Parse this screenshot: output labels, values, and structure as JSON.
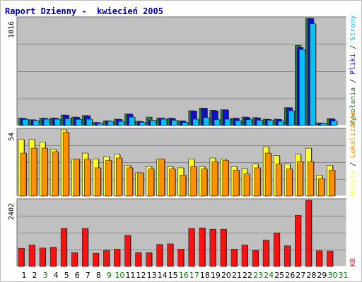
{
  "title": "Raport Dzienny -  kwiecień 2005",
  "colors": {
    "background": "#ffffff",
    "plot_bg": "#c0c0c0",
    "grid": "#8a8a8a",
    "title": "#0000b0",
    "hits": "#2a7a3a",
    "files": "#1010c8",
    "pages": "#00c0ff",
    "visits": "#ffff20",
    "sites": "#ff9000",
    "kbytes": "#ff1010",
    "weekend_label": "#008000",
    "weekday_label": "#000000"
  },
  "chart_data": [
    {
      "type": "bar",
      "panel": "top",
      "y_tick_label": "1016",
      "ylim": [
        0,
        1016
      ],
      "grid": true,
      "right_legend": [
        "Wywołania",
        "Pliki",
        "Strony"
      ],
      "categories": [
        "1",
        "2",
        "3",
        "4",
        "5",
        "6",
        "7",
        "8",
        "9",
        "10",
        "11",
        "12",
        "13",
        "14",
        "15",
        "16",
        "17",
        "18",
        "19",
        "20",
        "21",
        "22",
        "23",
        "24",
        "25",
        "26",
        "27",
        "28",
        "29",
        "30",
        "31"
      ],
      "series": [
        {
          "name": "Wywołania",
          "color": "#2a7a3a",
          "values": [
            70,
            55,
            70,
            72,
            100,
            80,
            95,
            30,
            45,
            60,
            110,
            40,
            80,
            72,
            70,
            44,
            140,
            165,
            145,
            150,
            70,
            80,
            75,
            60,
            60,
            170,
            760,
            1016,
            25,
            65,
            0
          ]
        },
        {
          "name": "Pliki",
          "color": "#1010c8",
          "values": [
            68,
            53,
            68,
            70,
            98,
            78,
            93,
            28,
            43,
            58,
            108,
            38,
            52,
            70,
            68,
            42,
            138,
            164,
            140,
            148,
            68,
            78,
            72,
            58,
            58,
            168,
            740,
            1016,
            23,
            63,
            0
          ]
        },
        {
          "name": "Strony",
          "color": "#00c0ff",
          "values": [
            58,
            48,
            60,
            60,
            65,
            58,
            60,
            20,
            40,
            40,
            80,
            30,
            50,
            60,
            50,
            28,
            60,
            75,
            55,
            60,
            45,
            55,
            50,
            50,
            40,
            140,
            720,
            965,
            18,
            42,
            0
          ]
        }
      ]
    },
    {
      "type": "bar",
      "panel": "middle",
      "y_tick_label": "54",
      "ylim": [
        0,
        54
      ],
      "grid": true,
      "right_legend": [
        "Wizyty",
        "Lokalizacje"
      ],
      "categories": [
        "1",
        "2",
        "3",
        "4",
        "5",
        "6",
        "7",
        "8",
        "9",
        "10",
        "11",
        "12",
        "13",
        "14",
        "15",
        "16",
        "17",
        "18",
        "19",
        "20",
        "21",
        "22",
        "23",
        "24",
        "25",
        "26",
        "27",
        "28",
        "29",
        "30",
        "31"
      ],
      "series": [
        {
          "name": "Wizyty",
          "color": "#ffff20",
          "values": [
            46,
            46,
            44,
            38,
            54,
            30,
            35,
            30,
            32,
            34,
            25,
            19,
            24,
            30,
            24,
            23,
            30,
            24,
            31,
            30,
            24,
            22,
            26,
            40,
            33,
            26,
            34,
            39,
            17,
            25,
            0
          ]
        },
        {
          "name": "Lokalizacje",
          "color": "#ff9000",
          "values": [
            35,
            39,
            39,
            36,
            52,
            30,
            30,
            23,
            29,
            31,
            23,
            19,
            22,
            30,
            22,
            17,
            24,
            22,
            28,
            29,
            21,
            18,
            23,
            35,
            26,
            22,
            28,
            28,
            14,
            21,
            0
          ]
        }
      ]
    },
    {
      "type": "bar",
      "panel": "bottom",
      "y_tick_label": "2402",
      "ylim": [
        0,
        2402
      ],
      "grid": true,
      "right_legend": [
        "KB"
      ],
      "categories": [
        "1",
        "2",
        "3",
        "4",
        "5",
        "6",
        "7",
        "8",
        "9",
        "10",
        "11",
        "12",
        "13",
        "14",
        "15",
        "16",
        "17",
        "18",
        "19",
        "20",
        "21",
        "22",
        "23",
        "24",
        "25",
        "26",
        "27",
        "28",
        "29",
        "30",
        "31"
      ],
      "series": [
        {
          "name": "KB",
          "color": "#ff1010",
          "values": [
            660,
            780,
            670,
            700,
            1380,
            500,
            1380,
            480,
            590,
            630,
            1130,
            500,
            500,
            800,
            820,
            630,
            1380,
            1400,
            1350,
            1350,
            630,
            780,
            580,
            960,
            1220,
            750,
            1860,
            2402,
            570,
            560,
            0
          ]
        }
      ]
    }
  ],
  "x_labels": [
    {
      "t": "1",
      "w": false
    },
    {
      "t": "2",
      "w": false
    },
    {
      "t": "3",
      "w": true
    },
    {
      "t": "4",
      "w": false
    },
    {
      "t": "5",
      "w": false
    },
    {
      "t": "6",
      "w": false
    },
    {
      "t": "7",
      "w": false
    },
    {
      "t": "8",
      "w": false
    },
    {
      "t": "9",
      "w": true
    },
    {
      "t": "10",
      "w": true
    },
    {
      "t": "11",
      "w": false
    },
    {
      "t": "12",
      "w": false
    },
    {
      "t": "13",
      "w": false
    },
    {
      "t": "14",
      "w": false
    },
    {
      "t": "15",
      "w": false
    },
    {
      "t": "16",
      "w": true
    },
    {
      "t": "17",
      "w": true
    },
    {
      "t": "18",
      "w": false
    },
    {
      "t": "19",
      "w": false
    },
    {
      "t": "20",
      "w": false
    },
    {
      "t": "21",
      "w": false
    },
    {
      "t": "22",
      "w": false
    },
    {
      "t": "23",
      "w": true
    },
    {
      "t": "24",
      "w": true
    },
    {
      "t": "25",
      "w": false
    },
    {
      "t": "26",
      "w": false
    },
    {
      "t": "27",
      "w": false
    },
    {
      "t": "28",
      "w": false
    },
    {
      "t": "29",
      "w": false
    },
    {
      "t": "30",
      "w": true
    },
    {
      "t": "31",
      "w": true
    }
  ],
  "right_labels": {
    "top": [
      {
        "t": "Wywołania",
        "c": "#2a7a3a"
      },
      {
        "t": " / ",
        "c": "#000000"
      },
      {
        "t": "Pliki",
        "c": "#1010c8"
      },
      {
        "t": " / ",
        "c": "#000000"
      },
      {
        "t": "Strony",
        "c": "#00c0ff"
      }
    ],
    "middle": [
      {
        "t": "Wizyty",
        "c": "#ffff20"
      },
      {
        "t": " / ",
        "c": "#000000"
      },
      {
        "t": "Lokalizacje",
        "c": "#ff9000"
      }
    ],
    "bottom": [
      {
        "t": "KB",
        "c": "#ff1010"
      }
    ]
  }
}
